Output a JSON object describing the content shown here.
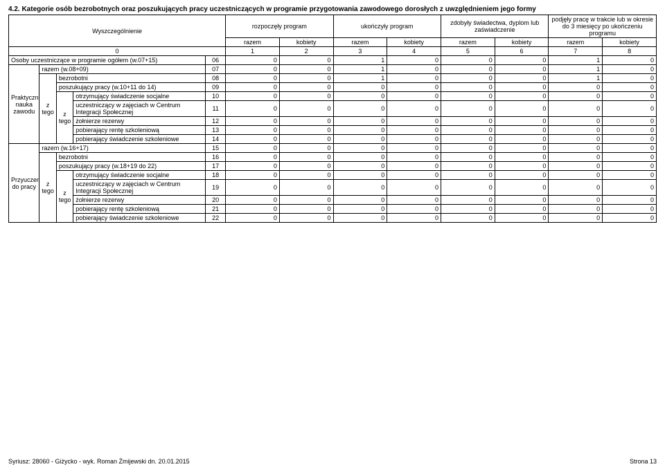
{
  "title": "4.2. Kategorie osób bezrobotnych oraz poszukujących pracy uczestniczących w programie przygotowania zawodowego dorosłych z uwzględnieniem jego formy",
  "header": {
    "wysz": "Wyszczególnienie",
    "g1": "rozpoczęły program",
    "g2": "ukończyły program",
    "g3": "zdobyły świadectwa, dyplom lub zaświadczenie",
    "g4": "podjęły pracę w trakcie lub w okresie do 3 miesięcy po ukończeniu programu",
    "razem": "razem",
    "kobiety": "kobiety",
    "cols": [
      "0",
      "1",
      "2",
      "3",
      "4",
      "5",
      "6",
      "7",
      "8"
    ]
  },
  "stub": {
    "osoby": "Osoby uczestniczące w programie ogółem (w.07+15)",
    "praktyczna": "Praktyczna nauka zawodu",
    "przyuczenie": "Przyuczenie do pracy",
    "z": "z",
    "tego": "tego",
    "ztego": "z tego",
    "razem1": "razem (w.08+09)",
    "bezrobotni": "bezrobotni",
    "poszuk1": "poszukujący pracy (w.10+11 do 14)",
    "otrzym": "otrzymujący świadczenie socjalne",
    "uczestn": "uczestniczący w zajęciach w Centrum Integracji Społecznej",
    "zolnierze": "żołnierze rezerwy",
    "rente": "pobierający rentę szkoleniową",
    "swiadcz": "pobierający świadczenie szkoleniowe",
    "razem2": "razem (w.16+17)",
    "poszuk2": "poszukujący pracy (w.18+19 do 22)"
  },
  "codes": [
    "06",
    "07",
    "08",
    "09",
    "10",
    "11",
    "12",
    "13",
    "14",
    "15",
    "16",
    "17",
    "18",
    "19",
    "20",
    "21",
    "22"
  ],
  "data": {
    "r06": [
      "0",
      "0",
      "1",
      "0",
      "0",
      "0",
      "1",
      "0"
    ],
    "r07": [
      "0",
      "0",
      "1",
      "0",
      "0",
      "0",
      "1",
      "0"
    ],
    "r08": [
      "0",
      "0",
      "1",
      "0",
      "0",
      "0",
      "1",
      "0"
    ],
    "r09": [
      "0",
      "0",
      "0",
      "0",
      "0",
      "0",
      "0",
      "0"
    ],
    "r10": [
      "0",
      "0",
      "0",
      "0",
      "0",
      "0",
      "0",
      "0"
    ],
    "r11": [
      "0",
      "0",
      "0",
      "0",
      "0",
      "0",
      "0",
      "0"
    ],
    "r12": [
      "0",
      "0",
      "0",
      "0",
      "0",
      "0",
      "0",
      "0"
    ],
    "r13": [
      "0",
      "0",
      "0",
      "0",
      "0",
      "0",
      "0",
      "0"
    ],
    "r14": [
      "0",
      "0",
      "0",
      "0",
      "0",
      "0",
      "0",
      "0"
    ],
    "r15": [
      "0",
      "0",
      "0",
      "0",
      "0",
      "0",
      "0",
      "0"
    ],
    "r16": [
      "0",
      "0",
      "0",
      "0",
      "0",
      "0",
      "0",
      "0"
    ],
    "r17": [
      "0",
      "0",
      "0",
      "0",
      "0",
      "0",
      "0",
      "0"
    ],
    "r18": [
      "0",
      "0",
      "0",
      "0",
      "0",
      "0",
      "0",
      "0"
    ],
    "r19": [
      "0",
      "0",
      "0",
      "0",
      "0",
      "0",
      "0",
      "0"
    ],
    "r20": [
      "0",
      "0",
      "0",
      "0",
      "0",
      "0",
      "0",
      "0"
    ],
    "r21": [
      "0",
      "0",
      "0",
      "0",
      "0",
      "0",
      "0",
      "0"
    ],
    "r22": [
      "0",
      "0",
      "0",
      "0",
      "0",
      "0",
      "0",
      "0"
    ]
  },
  "footer": {
    "left": "Syriusz: 28060 - Giżycko - wyk. Roman Żmijewski dn. 20.01.2015",
    "right": "Strona 13"
  }
}
